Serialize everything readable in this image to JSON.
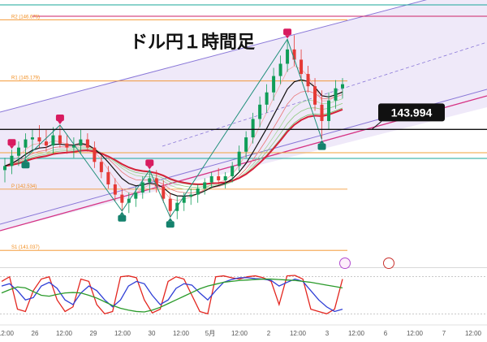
{
  "chart_data": {
    "type": "candlestick",
    "title": "ドル円１時間足",
    "current_price": {
      "label": "143.994",
      "value": 143.994
    },
    "y_range": [
      141.2,
      147.0
    ],
    "pivot_levels": [
      {
        "name": "R2",
        "label": "R2 (146.676)",
        "value": 146.676,
        "color": "#f28c1c"
      },
      {
        "name": "R1",
        "label": "R1 (145.179)",
        "value": 145.179,
        "color": "#f28c1c"
      },
      {
        "name": "P",
        "label": "P (142.534)",
        "value": 142.534,
        "color": "#f28c1c"
      },
      {
        "name": "S1",
        "label": "S1 (141.037)",
        "value": 141.037,
        "color": "#f28c1c"
      }
    ],
    "x_axis_labels": [
      "12:00",
      "26",
      "12:00",
      "29",
      "12:00",
      "30",
      "12:00",
      "5月",
      "12:00",
      "2",
      "12:00",
      "3",
      "12:00",
      "6",
      "12:00",
      "7",
      "12:00"
    ],
    "candles": [
      {
        "o": 143.0,
        "h": 143.3,
        "l": 142.7,
        "c": 143.1
      },
      {
        "o": 143.1,
        "h": 143.5,
        "l": 142.9,
        "c": 143.35
      },
      {
        "o": 143.35,
        "h": 143.7,
        "l": 143.1,
        "c": 143.55
      },
      {
        "o": 143.55,
        "h": 143.9,
        "l": 143.3,
        "c": 143.75
      },
      {
        "o": 143.75,
        "h": 144.0,
        "l": 143.5,
        "c": 143.8
      },
      {
        "o": 143.8,
        "h": 144.1,
        "l": 143.55,
        "c": 143.7
      },
      {
        "o": 143.7,
        "h": 144.0,
        "l": 143.45,
        "c": 143.6
      },
      {
        "o": 143.6,
        "h": 144.05,
        "l": 143.4,
        "c": 143.85
      },
      {
        "o": 143.85,
        "h": 144.1,
        "l": 143.55,
        "c": 143.65
      },
      {
        "o": 143.65,
        "h": 143.85,
        "l": 143.4,
        "c": 143.55
      },
      {
        "o": 143.55,
        "h": 143.8,
        "l": 143.3,
        "c": 143.6
      },
      {
        "o": 143.6,
        "h": 144.0,
        "l": 143.4,
        "c": 143.75
      },
      {
        "o": 143.75,
        "h": 143.9,
        "l": 143.45,
        "c": 143.55
      },
      {
        "o": 143.55,
        "h": 143.7,
        "l": 143.05,
        "c": 143.2
      },
      {
        "o": 143.2,
        "h": 143.35,
        "l": 142.8,
        "c": 142.95
      },
      {
        "o": 142.95,
        "h": 143.1,
        "l": 142.55,
        "c": 142.65
      },
      {
        "o": 142.65,
        "h": 142.8,
        "l": 142.25,
        "c": 142.4
      },
      {
        "o": 142.4,
        "h": 142.55,
        "l": 142.0,
        "c": 142.2
      },
      {
        "o": 142.2,
        "h": 142.45,
        "l": 141.95,
        "c": 142.3
      },
      {
        "o": 142.3,
        "h": 142.6,
        "l": 142.1,
        "c": 142.45
      },
      {
        "o": 142.45,
        "h": 142.85,
        "l": 142.3,
        "c": 142.7
      },
      {
        "o": 142.7,
        "h": 143.0,
        "l": 142.45,
        "c": 142.8
      },
      {
        "o": 142.8,
        "h": 143.0,
        "l": 142.45,
        "c": 142.6
      },
      {
        "o": 142.6,
        "h": 142.75,
        "l": 142.2,
        "c": 142.3
      },
      {
        "o": 142.3,
        "h": 142.45,
        "l": 141.85,
        "c": 142.0
      },
      {
        "o": 142.0,
        "h": 142.35,
        "l": 141.8,
        "c": 142.2
      },
      {
        "o": 142.2,
        "h": 142.45,
        "l": 142.0,
        "c": 142.35
      },
      {
        "o": 142.35,
        "h": 142.55,
        "l": 142.15,
        "c": 142.4
      },
      {
        "o": 142.4,
        "h": 142.65,
        "l": 142.2,
        "c": 142.55
      },
      {
        "o": 142.55,
        "h": 142.8,
        "l": 142.4,
        "c": 142.7
      },
      {
        "o": 142.7,
        "h": 142.95,
        "l": 142.55,
        "c": 142.85
      },
      {
        "o": 142.85,
        "h": 143.05,
        "l": 142.65,
        "c": 142.75
      },
      {
        "o": 142.75,
        "h": 142.95,
        "l": 142.55,
        "c": 142.85
      },
      {
        "o": 142.85,
        "h": 143.2,
        "l": 142.7,
        "c": 143.1
      },
      {
        "o": 143.1,
        "h": 143.6,
        "l": 142.95,
        "c": 143.45
      },
      {
        "o": 143.45,
        "h": 143.95,
        "l": 143.3,
        "c": 143.8
      },
      {
        "o": 143.8,
        "h": 144.4,
        "l": 143.65,
        "c": 144.25
      },
      {
        "o": 144.25,
        "h": 144.8,
        "l": 144.05,
        "c": 144.6
      },
      {
        "o": 144.6,
        "h": 145.1,
        "l": 144.4,
        "c": 144.9
      },
      {
        "o": 144.9,
        "h": 145.5,
        "l": 144.7,
        "c": 145.3
      },
      {
        "o": 145.3,
        "h": 145.8,
        "l": 145.1,
        "c": 145.6
      },
      {
        "o": 145.6,
        "h": 146.2,
        "l": 145.4,
        "c": 145.95
      },
      {
        "o": 145.95,
        "h": 146.3,
        "l": 145.55,
        "c": 145.7
      },
      {
        "o": 145.7,
        "h": 145.95,
        "l": 145.2,
        "c": 145.35
      },
      {
        "o": 145.35,
        "h": 145.55,
        "l": 144.9,
        "c": 145.05
      },
      {
        "o": 145.05,
        "h": 145.25,
        "l": 144.45,
        "c": 144.6
      },
      {
        "o": 144.6,
        "h": 144.95,
        "l": 143.75,
        "c": 144.2
      },
      {
        "o": 144.2,
        "h": 144.9,
        "l": 144.0,
        "c": 144.7
      },
      {
        "o": 144.7,
        "h": 145.2,
        "l": 144.5,
        "c": 145.0
      },
      {
        "o": 145.0,
        "h": 145.25,
        "l": 144.75,
        "c": 145.1
      }
    ],
    "high_markers": [
      1,
      8,
      21,
      41
    ],
    "low_markers": [
      3,
      17,
      24,
      46
    ],
    "oscillator": {
      "range": [
        0,
        100
      ],
      "series": [
        {
          "color": "#e3261f",
          "values": [
            80,
            90,
            20,
            15,
            60,
            85,
            90,
            40,
            15,
            25,
            85,
            80,
            30,
            10,
            15,
            90,
            92,
            88,
            40,
            12,
            20,
            80,
            90,
            85,
            50,
            15,
            10,
            90,
            92,
            88,
            85,
            90,
            92,
            88,
            80,
            30,
            92,
            93,
            85,
            20,
            15,
            10,
            20,
            85
          ]
        },
        {
          "color": "#2f3fd6",
          "values": [
            70,
            75,
            60,
            40,
            45,
            70,
            78,
            65,
            40,
            30,
            55,
            70,
            60,
            40,
            25,
            40,
            70,
            80,
            75,
            50,
            30,
            40,
            65,
            75,
            72,
            55,
            40,
            60,
            78,
            84,
            88,
            88,
            86,
            85,
            82,
            70,
            78,
            85,
            80,
            60,
            40,
            25,
            15,
            20
          ]
        },
        {
          "color": "#2a9a2a",
          "values": [
            55,
            62,
            68,
            66,
            58,
            50,
            48,
            52,
            55,
            56,
            55,
            50,
            44,
            36,
            28,
            22,
            18,
            15,
            14,
            18,
            24,
            32,
            40,
            48,
            56,
            64,
            70,
            74,
            78,
            80,
            82,
            83,
            84,
            85,
            85,
            84,
            83,
            82,
            80,
            78,
            75,
            72,
            69,
            66
          ]
        }
      ]
    }
  }
}
